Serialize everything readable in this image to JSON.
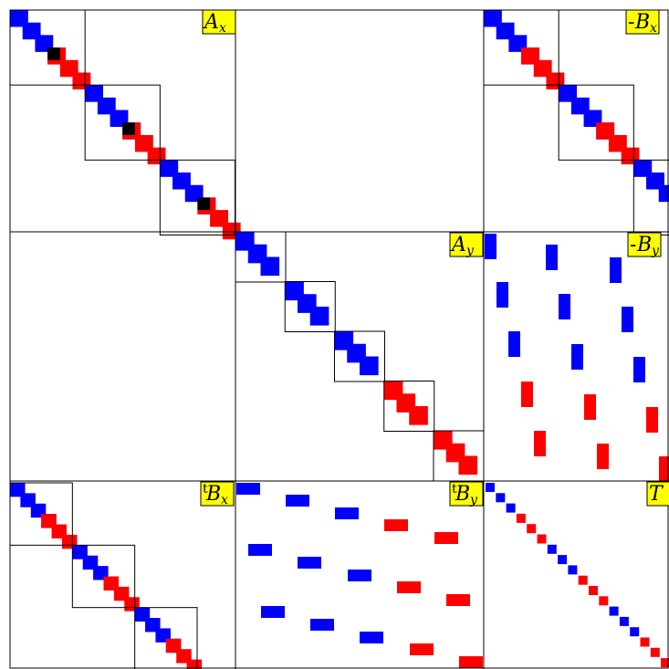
{
  "colors": {
    "blue": "#0000ff",
    "red": "#ff0000",
    "black": "#000000",
    "label_bg": "#ffff00",
    "grid_line": "#000000"
  },
  "blocks": [
    {
      "id": "Ax",
      "label_prefix": "",
      "label_main": "A",
      "label_sub": "x",
      "sub_blocks": 3,
      "pattern": "diag-x"
    },
    {
      "id": "minusBx",
      "label_prefix": "-",
      "label_main": "B",
      "label_sub": "x",
      "sub_blocks": 3,
      "pattern": "diag-x-cut"
    },
    {
      "id": "Ay",
      "label_prefix": "",
      "label_main": "A",
      "label_sub": "y",
      "sub_blocks": 5,
      "pattern": "diag-y"
    },
    {
      "id": "minusBy",
      "label_prefix": "-",
      "label_main": "B",
      "label_sub": "y",
      "sub_blocks": 0,
      "pattern": "scatter-vertical"
    },
    {
      "id": "tBx",
      "label_prefix": "t",
      "label_main": "B",
      "label_sub": "x",
      "sub_blocks": 3,
      "pattern": "diag-x-thin"
    },
    {
      "id": "tBy",
      "label_prefix": "t",
      "label_main": "B",
      "label_sub": "y",
      "sub_blocks": 0,
      "pattern": "scatter-horizontal"
    },
    {
      "id": "T",
      "label_prefix": "",
      "label_main": "T",
      "label_sub": "",
      "sub_blocks": 0,
      "pattern": "diag-thin"
    }
  ]
}
